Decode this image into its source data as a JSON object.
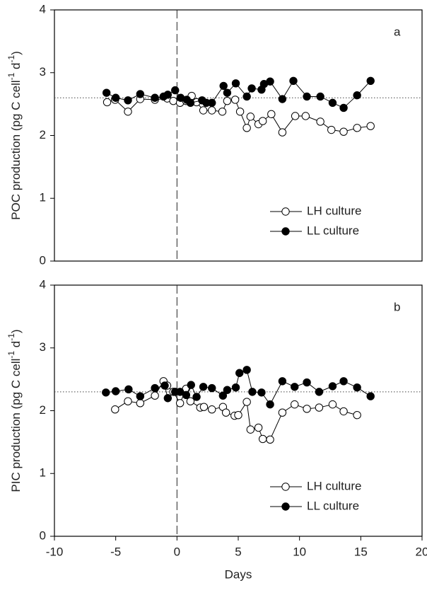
{
  "chart_data": [
    {
      "type": "line",
      "annotation": "a",
      "ylabel": [
        "POC production (pg C cell",
        "-1",
        " d",
        "-1",
        ")"
      ],
      "xlim": [
        -10,
        20
      ],
      "ylim": [
        0,
        4
      ],
      "yticks": [
        0,
        1,
        2,
        3,
        4
      ],
      "vline": 0,
      "hline": 2.6,
      "legend": "lower right",
      "series": [
        {
          "name": "LH culture",
          "color": "#ffffff",
          "x": [
            -5.7,
            -5.05,
            -4.0,
            -3.0,
            -1.8,
            -0.8,
            -0.3,
            0.25,
            0.75,
            1.2,
            1.6,
            2.15,
            2.85,
            3.7,
            4.1,
            4.75,
            5.15,
            5.7,
            6.0,
            6.65,
            7.0,
            7.7,
            8.6,
            9.65,
            10.5,
            11.7,
            12.6,
            13.6,
            14.7,
            15.8
          ],
          "values": [
            2.53,
            2.57,
            2.38,
            2.58,
            2.57,
            2.59,
            2.55,
            2.52,
            2.55,
            2.63,
            2.53,
            2.4,
            2.4,
            2.38,
            2.55,
            2.57,
            2.38,
            2.12,
            2.3,
            2.18,
            2.23,
            2.34,
            2.05,
            2.31,
            2.31,
            2.22,
            2.09,
            2.06,
            2.12,
            2.15
          ]
        },
        {
          "name": "LL culture",
          "color": "#000000",
          "x": [
            -5.75,
            -5.0,
            -4.0,
            -3.0,
            -1.8,
            -1.1,
            -0.75,
            -0.15,
            0.3,
            0.8,
            1.1,
            2.05,
            2.4,
            2.85,
            3.8,
            4.1,
            4.8,
            5.7,
            6.1,
            6.9,
            7.1,
            7.6,
            8.6,
            9.5,
            10.6,
            11.7,
            12.7,
            13.6,
            14.7,
            15.8
          ],
          "values": [
            2.68,
            2.6,
            2.56,
            2.66,
            2.6,
            2.62,
            2.65,
            2.72,
            2.6,
            2.57,
            2.52,
            2.56,
            2.52,
            2.52,
            2.79,
            2.68,
            2.83,
            2.62,
            2.75,
            2.73,
            2.82,
            2.86,
            2.58,
            2.87,
            2.62,
            2.62,
            2.52,
            2.44,
            2.64,
            2.87
          ]
        }
      ]
    },
    {
      "type": "line",
      "annotation": "b",
      "ylabel": [
        "PIC production (pg C cell",
        "-1",
        " d",
        "-1",
        ")"
      ],
      "xlabel": "Days",
      "xlim": [
        -10,
        20
      ],
      "xticks": [
        -10,
        -5,
        0,
        5,
        10,
        15,
        20
      ],
      "ylim": [
        0,
        4
      ],
      "yticks": [
        0,
        1,
        2,
        3,
        4
      ],
      "vline": 0,
      "hline": 2.3,
      "legend": "lower right",
      "series": [
        {
          "name": "LH culture",
          "color": "#ffffff",
          "x": [
            -5.05,
            -4.0,
            -3.0,
            -1.8,
            -1.1,
            -0.8,
            -0.3,
            0.25,
            0.75,
            1.1,
            1.9,
            2.2,
            2.85,
            3.75,
            4.0,
            4.7,
            5.0,
            5.7,
            6.0,
            6.65,
            7.0,
            7.6,
            8.6,
            9.6,
            10.6,
            11.6,
            12.7,
            13.6,
            14.7
          ],
          "values": [
            2.02,
            2.15,
            2.12,
            2.24,
            2.47,
            2.4,
            2.3,
            2.12,
            2.35,
            2.15,
            2.05,
            2.06,
            2.02,
            2.06,
            1.97,
            1.92,
            1.93,
            2.14,
            1.7,
            1.73,
            1.55,
            1.54,
            1.97,
            2.1,
            2.03,
            2.05,
            2.1,
            1.99,
            1.93
          ]
        },
        {
          "name": "LL culture",
          "color": "#000000",
          "x": [
            -5.8,
            -5.0,
            -3.95,
            -3.0,
            -1.8,
            -1.0,
            -0.75,
            -0.15,
            0.25,
            0.75,
            1.15,
            1.6,
            2.15,
            2.85,
            3.75,
            4.1,
            4.8,
            5.1,
            5.7,
            6.15,
            6.9,
            7.6,
            8.6,
            9.6,
            10.6,
            11.6,
            12.7,
            13.6,
            14.7,
            15.8
          ],
          "values": [
            2.29,
            2.31,
            2.34,
            2.23,
            2.36,
            2.4,
            2.2,
            2.3,
            2.3,
            2.25,
            2.41,
            2.22,
            2.38,
            2.36,
            2.24,
            2.33,
            2.37,
            2.6,
            2.65,
            2.3,
            2.29,
            2.1,
            2.47,
            2.38,
            2.45,
            2.3,
            2.39,
            2.47,
            2.37,
            2.23
          ]
        }
      ]
    }
  ]
}
